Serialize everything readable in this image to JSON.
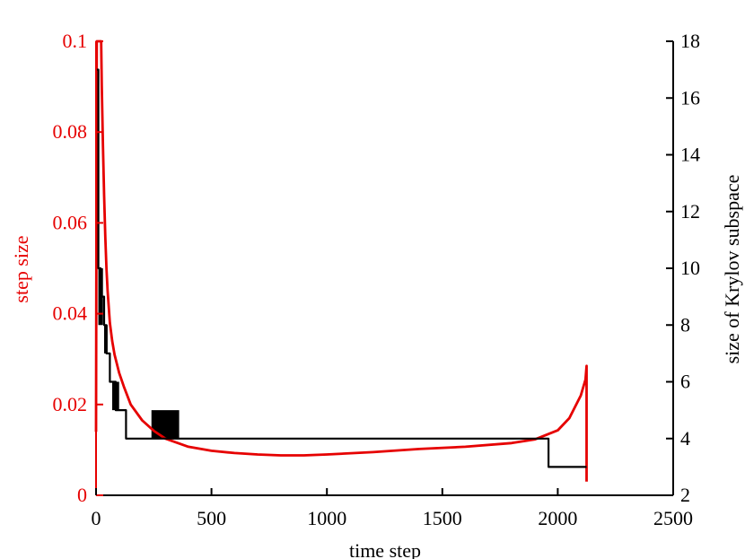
{
  "chart_data": {
    "type": "line",
    "title": "",
    "xlabel": "time step",
    "ylabel": "step size",
    "y2label": "size of Krylov subspace",
    "xlim": [
      0,
      2500
    ],
    "ylim": [
      0,
      0.1
    ],
    "y2lim": [
      2,
      18
    ],
    "xticks": [
      "0",
      "500",
      "1000",
      "1500",
      "2000",
      "2500"
    ],
    "yticks": [
      "0",
      "0.02",
      "0.04",
      "0.06",
      "0.08",
      "0.1"
    ],
    "y2ticks": [
      "2",
      "4",
      "6",
      "8",
      "10",
      "12",
      "14",
      "16",
      "18"
    ],
    "grid": false,
    "colors": {
      "step_size": "#e60000",
      "krylov": "#000000",
      "axis_left": "#e60000",
      "axis_right": "#000000"
    },
    "series": [
      {
        "axis": "left",
        "x": [
          0,
          3,
          5,
          8,
          12,
          15,
          18,
          20,
          22,
          25,
          30,
          35,
          40,
          45,
          50,
          60,
          70,
          80,
          100,
          120,
          150,
          200,
          250,
          300,
          400,
          500,
          600,
          700,
          800,
          900,
          1000,
          1200,
          1400,
          1600,
          1800,
          1900,
          2000,
          2050,
          2100,
          2120,
          2125,
          2125
        ],
        "y": [
          0.014,
          0.1,
          0.1,
          0.1,
          0.1,
          0.1,
          0.1,
          0.1,
          0.1,
          0.09,
          0.077,
          0.066,
          0.057,
          0.05,
          0.045,
          0.038,
          0.034,
          0.031,
          0.027,
          0.024,
          0.02,
          0.0165,
          0.0142,
          0.0125,
          0.0107,
          0.0098,
          0.0093,
          0.009,
          0.0088,
          0.0088,
          0.009,
          0.0095,
          0.0102,
          0.0107,
          0.0115,
          0.0123,
          0.0143,
          0.017,
          0.022,
          0.0255,
          0.0285,
          0.003
        ]
      },
      {
        "axis": "right",
        "x": [
          0,
          10,
          10,
          20,
          20,
          35,
          35,
          45,
          45,
          60,
          60,
          85,
          85,
          100,
          100,
          130,
          130,
          1960,
          1960,
          2125
        ],
        "y": [
          17,
          17,
          10,
          10,
          9,
          9,
          8,
          8,
          7,
          7,
          6,
          6,
          5,
          5,
          5,
          5,
          4,
          4,
          3,
          3
        ]
      }
    ],
    "bands": [
      {
        "x": [
          10,
          30
        ],
        "y2": [
          8,
          10
        ]
      },
      {
        "x": [
          35,
          50
        ],
        "y2": [
          7,
          8
        ]
      },
      {
        "x": [
          70,
          100
        ],
        "y2": [
          5,
          6
        ]
      },
      {
        "x": [
          240,
          360
        ],
        "y2": [
          4,
          5
        ]
      }
    ]
  }
}
